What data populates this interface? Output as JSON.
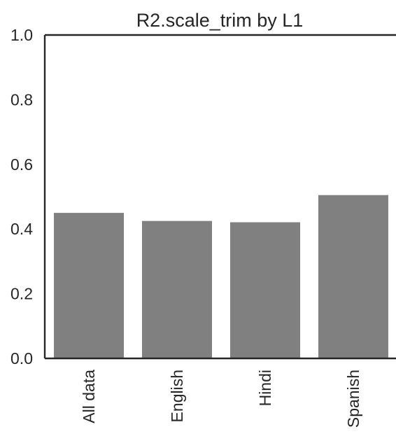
{
  "chart_data": {
    "type": "bar",
    "title": "R2.scale_trim by L1",
    "xlabel": "",
    "ylabel": "",
    "categories": [
      "All data",
      "English",
      "Hindi",
      "Spanish"
    ],
    "values": [
      0.45,
      0.425,
      0.421,
      0.505
    ],
    "ylim": [
      0,
      1.0
    ],
    "yticks": [
      0.0,
      0.2,
      0.4,
      0.6,
      0.8,
      1.0
    ],
    "ytick_labels": [
      "0.0",
      "0.2",
      "0.4",
      "0.6",
      "0.8",
      "1.0"
    ],
    "bar_color": "#808080",
    "grid": false,
    "legend": "none"
  }
}
